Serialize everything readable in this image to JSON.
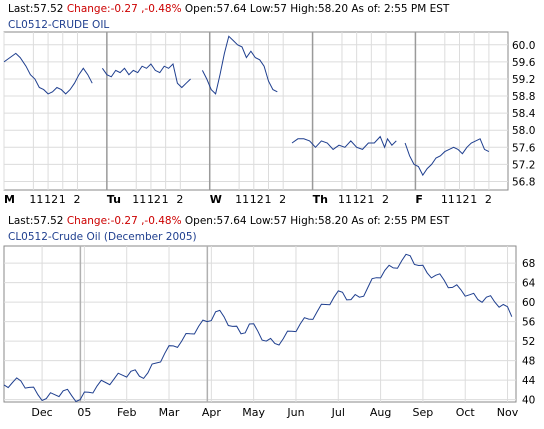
{
  "quote_bar": {
    "last_label": "Last:",
    "last": "57.52",
    "change_label": "Change:",
    "change": "-0.27 ,-0.48%",
    "open_label": "Open:",
    "open": "57.64",
    "low_label": "Low:",
    "low": "57",
    "high_label": "High:",
    "high": "58.20",
    "asof_label": "As of:",
    "asof": "2:55 PM EST"
  },
  "colors": {
    "line": "#1f3f8f",
    "grid": "#dcdcdc",
    "frame": "#8a8a8a",
    "change": "#cc0000",
    "symbol": "#1f3f8f"
  },
  "chart_data": [
    {
      "type": "line",
      "title": "CL0512-CRUDE OIL",
      "y_ticks": [
        "56.8",
        "57.2",
        "57.6",
        "58.0",
        "58.4",
        "58.8",
        "59.2",
        "59.6",
        "60.0"
      ],
      "x_ticks": [
        {
          "label": "M",
          "bold": true,
          "x": 0
        },
        {
          "label": "11",
          "x": 2
        },
        {
          "label": "12",
          "x": 3
        },
        {
          "label": "1",
          "x": 4
        },
        {
          "label": "2",
          "x": 5
        },
        {
          "label": "Tu",
          "bold": true,
          "x": 7
        },
        {
          "label": "11",
          "x": 9
        },
        {
          "label": "12",
          "x": 10
        },
        {
          "label": "1",
          "x": 11
        },
        {
          "label": "2",
          "x": 12
        },
        {
          "label": "W",
          "bold": true,
          "x": 14
        },
        {
          "label": "11",
          "x": 16
        },
        {
          "label": "12",
          "x": 17
        },
        {
          "label": "1",
          "x": 18
        },
        {
          "label": "2",
          "x": 19
        },
        {
          "label": "Th",
          "bold": true,
          "x": 21
        },
        {
          "label": "11",
          "x": 23
        },
        {
          "label": "12",
          "x": 24
        },
        {
          "label": "1",
          "x": 25
        },
        {
          "label": "2",
          "x": 26
        },
        {
          "label": "F",
          "bold": true,
          "x": 28
        },
        {
          "label": "11",
          "x": 30
        },
        {
          "label": "12",
          "x": 31
        },
        {
          "label": "1",
          "x": 32
        },
        {
          "label": "2",
          "x": 33
        }
      ],
      "day_separators": [
        7,
        14,
        21,
        28
      ],
      "ylim": [
        56.6,
        60.3
      ],
      "xlim": [
        0,
        34.3
      ],
      "segments": [
        [
          [
            0,
            59.6
          ],
          [
            0.4,
            59.7
          ],
          [
            0.8,
            59.8
          ],
          [
            1.1,
            59.7
          ],
          [
            1.5,
            59.5
          ],
          [
            1.8,
            59.3
          ],
          [
            2.1,
            59.2
          ],
          [
            2.4,
            59.0
          ],
          [
            2.7,
            58.95
          ],
          [
            3.0,
            58.85
          ],
          [
            3.3,
            58.9
          ],
          [
            3.6,
            59.0
          ],
          [
            3.9,
            58.95
          ],
          [
            4.2,
            58.85
          ],
          [
            4.5,
            58.95
          ],
          [
            4.8,
            59.1
          ],
          [
            5.1,
            59.3
          ],
          [
            5.4,
            59.45
          ],
          [
            5.7,
            59.3
          ],
          [
            6.0,
            59.1
          ]
        ],
        [
          [
            6.7,
            59.45
          ],
          [
            7.0,
            59.3
          ],
          [
            7.3,
            59.25
          ],
          [
            7.6,
            59.4
          ],
          [
            7.9,
            59.35
          ],
          [
            8.2,
            59.45
          ],
          [
            8.5,
            59.3
          ],
          [
            8.8,
            59.4
          ],
          [
            9.1,
            59.35
          ],
          [
            9.4,
            59.5
          ],
          [
            9.7,
            59.45
          ],
          [
            10.0,
            59.55
          ],
          [
            10.3,
            59.4
          ],
          [
            10.6,
            59.35
          ],
          [
            10.9,
            59.5
          ],
          [
            11.2,
            59.45
          ],
          [
            11.5,
            59.55
          ],
          [
            11.8,
            59.1
          ],
          [
            12.1,
            59.0
          ],
          [
            12.4,
            59.1
          ],
          [
            12.7,
            59.2
          ]
        ],
        [
          [
            13.5,
            59.4
          ],
          [
            13.8,
            59.2
          ],
          [
            14.1,
            58.95
          ],
          [
            14.4,
            58.85
          ],
          [
            14.7,
            59.3
          ],
          [
            15.0,
            59.8
          ],
          [
            15.3,
            60.2
          ],
          [
            15.6,
            60.1
          ],
          [
            15.9,
            60.0
          ],
          [
            16.2,
            59.95
          ],
          [
            16.5,
            59.7
          ],
          [
            16.8,
            59.85
          ],
          [
            17.1,
            59.7
          ],
          [
            17.4,
            59.65
          ],
          [
            17.7,
            59.5
          ],
          [
            18.0,
            59.15
          ],
          [
            18.3,
            58.95
          ],
          [
            18.6,
            58.9
          ]
        ],
        [
          [
            19.6,
            57.7
          ],
          [
            20.0,
            57.8
          ],
          [
            20.4,
            57.8
          ],
          [
            20.8,
            57.75
          ],
          [
            21.2,
            57.6
          ],
          [
            21.6,
            57.75
          ],
          [
            22.0,
            57.7
          ],
          [
            22.4,
            57.55
          ],
          [
            22.8,
            57.65
          ],
          [
            23.2,
            57.6
          ],
          [
            23.6,
            57.75
          ],
          [
            24.0,
            57.6
          ],
          [
            24.4,
            57.55
          ],
          [
            24.8,
            57.7
          ],
          [
            25.2,
            57.7
          ],
          [
            25.6,
            57.85
          ],
          [
            25.9,
            57.6
          ],
          [
            26.1,
            57.8
          ],
          [
            26.4,
            57.65
          ],
          [
            26.7,
            57.75
          ]
        ],
        [
          [
            27.3,
            57.7
          ],
          [
            27.6,
            57.4
          ],
          [
            27.9,
            57.2
          ],
          [
            28.2,
            57.15
          ],
          [
            28.5,
            56.95
          ],
          [
            28.8,
            57.1
          ],
          [
            29.1,
            57.2
          ],
          [
            29.4,
            57.35
          ],
          [
            29.7,
            57.4
          ],
          [
            30.0,
            57.5
          ],
          [
            30.3,
            57.55
          ],
          [
            30.6,
            57.6
          ],
          [
            30.9,
            57.55
          ],
          [
            31.2,
            57.45
          ],
          [
            31.5,
            57.6
          ],
          [
            31.8,
            57.7
          ],
          [
            32.1,
            57.75
          ],
          [
            32.4,
            57.8
          ],
          [
            32.7,
            57.55
          ],
          [
            33.0,
            57.5
          ]
        ]
      ]
    },
    {
      "type": "line",
      "title": "CL0512-Crude Oil (December 2005)",
      "y_ticks": [
        "40",
        "44",
        "48",
        "52",
        "56",
        "60",
        "64",
        "68"
      ],
      "x_ticks": [
        "Dec",
        "05",
        "Feb",
        "Mar",
        "Apr",
        "May",
        "Jun",
        "Jul",
        "Aug",
        "Sep",
        "Oct",
        "Nov"
      ],
      "x_tick_positions": [
        1,
        2,
        3,
        4,
        5,
        6,
        7,
        8,
        9,
        10,
        11,
        12
      ],
      "ylim": [
        39.5,
        71.5
      ],
      "xlim": [
        0.1,
        12.2
      ],
      "series": [
        {
          "values": [
            [
              0.1,
              43.0
            ],
            [
              0.3,
              43.5
            ],
            [
              0.5,
              43.8
            ],
            [
              0.7,
              42.5
            ],
            [
              0.9,
              41.0
            ],
            [
              1.1,
              40.2
            ],
            [
              1.3,
              41.0
            ],
            [
              1.5,
              41.8
            ],
            [
              1.7,
              40.8
            ],
            [
              1.9,
              40.0
            ],
            [
              2.1,
              41.5
            ],
            [
              2.3,
              42.8
            ],
            [
              2.5,
              43.5
            ],
            [
              2.7,
              44.2
            ],
            [
              2.9,
              45.0
            ],
            [
              3.1,
              45.8
            ],
            [
              3.3,
              44.8
            ],
            [
              3.5,
              45.5
            ],
            [
              3.7,
              47.5
            ],
            [
              3.9,
              49.5
            ],
            [
              4.1,
              51.0
            ],
            [
              4.3,
              52.0
            ],
            [
              4.5,
              53.5
            ],
            [
              4.7,
              55.0
            ],
            [
              4.9,
              56.0
            ],
            [
              5.1,
              58.0
            ],
            [
              5.3,
              57.0
            ],
            [
              5.5,
              55.0
            ],
            [
              5.7,
              53.5
            ],
            [
              5.9,
              55.5
            ],
            [
              6.1,
              54.0
            ],
            [
              6.3,
              52.0
            ],
            [
              6.5,
              51.5
            ],
            [
              6.7,
              52.5
            ],
            [
              6.9,
              54.0
            ],
            [
              7.1,
              55.5
            ],
            [
              7.3,
              56.5
            ],
            [
              7.5,
              58.0
            ],
            [
              7.7,
              59.5
            ],
            [
              7.9,
              61.0
            ],
            [
              8.1,
              62.0
            ],
            [
              8.3,
              60.5
            ],
            [
              8.5,
              61.0
            ],
            [
              8.7,
              63.0
            ],
            [
              8.9,
              65.0
            ],
            [
              9.1,
              66.5
            ],
            [
              9.3,
              67.0
            ],
            [
              9.5,
              68.5
            ],
            [
              9.7,
              69.5
            ],
            [
              9.9,
              67.5
            ],
            [
              10.1,
              66.0
            ],
            [
              10.3,
              65.5
            ],
            [
              10.5,
              64.5
            ],
            [
              10.7,
              63.0
            ],
            [
              10.9,
              62.5
            ],
            [
              11.1,
              61.5
            ],
            [
              11.3,
              60.5
            ],
            [
              11.5,
              61.0
            ],
            [
              11.7,
              60.0
            ],
            [
              11.9,
              59.5
            ],
            [
              12.1,
              57.0
            ]
          ]
        }
      ]
    }
  ]
}
